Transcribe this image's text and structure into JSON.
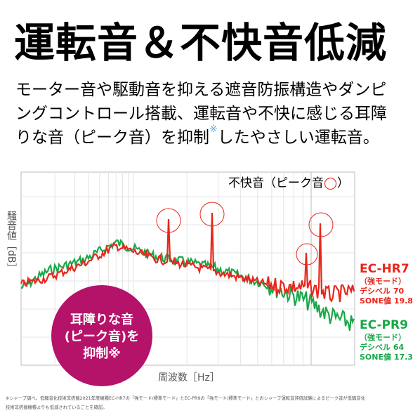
{
  "header": {
    "title": "運転音＆不快音低減"
  },
  "body": {
    "lines": [
      "モーター音や駆動音を抑える遮音防振構造やダンピ",
      "ングコントロール搭載、運転音や不快に感じる耳障"
    ],
    "line3_before": "りな音（ピーク音）を抑制",
    "line3_mark": "※",
    "line3_after": "したやさしい運転音。"
  },
  "graph": {
    "y_label": "騒音値［dB］",
    "x_label": "周波数［Hz］",
    "legend": "不快音（ピーク音",
    "legend_icon": "◯",
    "legend_close": "）",
    "badge": [
      "耳障りな音",
      "(ピーク音)を",
      "抑制※"
    ],
    "models": [
      {
        "name": "EC-HR7",
        "mode": "（強モード）",
        "db": "デシベル 70",
        "sone": "SONE値 19.8"
      },
      {
        "name": "EC-PR9",
        "mode": "（強モード）",
        "db": "デシベル 64",
        "sone": "SONE値 17.3"
      }
    ]
  },
  "footnote": [
    "※シャープ調べ。低騒音化技術非搭載2021年度機種EC-HR7の「強モード/標準モード」とEC-PR9の「強モード/標準モード」とのシャープ運転音評価試験によるピーク音が低騒音化",
    "技術非搭載機種よりも低減されていることを確認。"
  ]
}
